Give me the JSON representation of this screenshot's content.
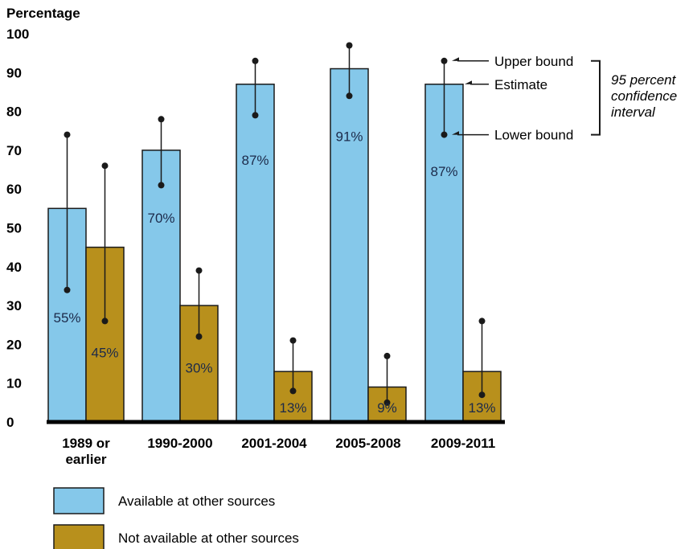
{
  "chart_data": {
    "type": "bar",
    "ylabel": "Percentage",
    "ylim": [
      0,
      100
    ],
    "yticks": [
      0,
      10,
      20,
      30,
      40,
      50,
      60,
      70,
      80,
      90,
      100
    ],
    "categories": [
      "1989 or earlier",
      "1990-2000",
      "2001-2004",
      "2005-2008",
      "2009-2011"
    ],
    "category_lines": [
      [
        "1989 or",
        "earlier"
      ],
      [
        "1990-2000"
      ],
      [
        "2001-2004"
      ],
      [
        "2005-2008"
      ],
      [
        "2009-2011"
      ]
    ],
    "series": [
      {
        "name": "Available at other sources",
        "color": "#85c8ea",
        "values": [
          55,
          70,
          87,
          91,
          87
        ],
        "lower": [
          34,
          61,
          79,
          84,
          74
        ],
        "upper": [
          74,
          78,
          93,
          97,
          93
        ],
        "labels": [
          "55%",
          "70%",
          "87%",
          "91%",
          "87%"
        ]
      },
      {
        "name": "Not available at other sources",
        "color": "#b8901c",
        "values": [
          45,
          30,
          13,
          9,
          13
        ],
        "lower": [
          26,
          22,
          8,
          5,
          7
        ],
        "upper": [
          66,
          39,
          21,
          17,
          26
        ],
        "labels": [
          "45%",
          "30%",
          "13%",
          "9%",
          "13%"
        ]
      }
    ],
    "annotation": {
      "upper": "Upper bound",
      "estimate": "Estimate",
      "lower": "Lower bound",
      "ci_lines": [
        "95 percent",
        "confidence",
        "interval"
      ]
    },
    "grid": false,
    "legend_position": "bottom-left"
  }
}
